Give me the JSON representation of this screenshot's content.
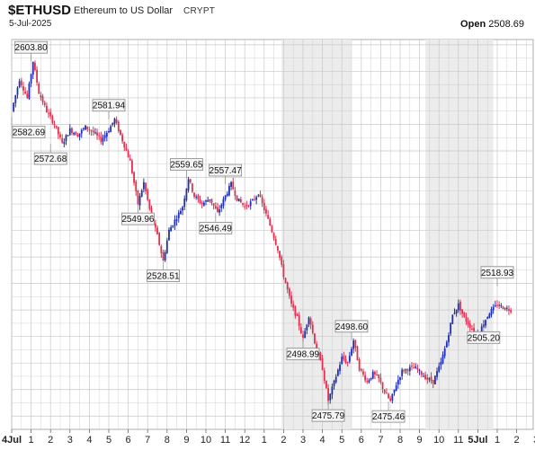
{
  "header": {
    "symbol": "$ETHUSD",
    "name": "Ethereum to US Dollar",
    "exchange": "CRYPT",
    "date": "5-Jul-2025",
    "open_label": "Open",
    "open_value": "2508.69"
  },
  "colors": {
    "up": "#1f2fb0",
    "down": "#e0304f",
    "grid": "#c8c8c8",
    "shade": "#ececec"
  },
  "chart_data": {
    "type": "candlestick",
    "ylim": [
      2465,
      2612
    ],
    "grid": true,
    "x_tick_labels": [
      {
        "label": "4Jul",
        "bold": true
      },
      {
        "label": "1"
      },
      {
        "label": "2"
      },
      {
        "label": "3"
      },
      {
        "label": "4"
      },
      {
        "label": "5"
      },
      {
        "label": "6"
      },
      {
        "label": "7"
      },
      {
        "label": "8"
      },
      {
        "label": "9"
      },
      {
        "label": "10"
      },
      {
        "label": "11"
      },
      {
        "label": "12"
      },
      {
        "label": "1"
      },
      {
        "label": "2"
      },
      {
        "label": "3"
      },
      {
        "label": "4"
      },
      {
        "label": "5"
      },
      {
        "label": "6"
      },
      {
        "label": "7"
      },
      {
        "label": "8"
      },
      {
        "label": "9"
      },
      {
        "label": "10"
      },
      {
        "label": "11"
      },
      {
        "label": "5Jul",
        "bold": true
      },
      {
        "label": "1"
      },
      {
        "label": "2"
      },
      {
        "label": "3"
      }
    ],
    "annotations": [
      {
        "label": "2603.80",
        "hour": 1,
        "value": 2603.8,
        "pos": "above"
      },
      {
        "label": "2582.69",
        "hour": 0,
        "value": 2582.69,
        "pos": "below"
      },
      {
        "label": "2572.68",
        "hour": 2,
        "value": 2572.68,
        "pos": "below"
      },
      {
        "label": "2581.94",
        "hour": 5,
        "value": 2581.94,
        "pos": "above"
      },
      {
        "label": "2549.96",
        "hour": 6.5,
        "value": 2549.96,
        "pos": "below"
      },
      {
        "label": "2559.65",
        "hour": 9,
        "value": 2559.65,
        "pos": "above"
      },
      {
        "label": "2557.47",
        "hour": 11,
        "value": 2557.47,
        "pos": "above"
      },
      {
        "label": "2546.49",
        "hour": 10.5,
        "value": 2546.49,
        "pos": "below"
      },
      {
        "label": "2528.51",
        "hour": 7.8,
        "value": 2528.51,
        "pos": "below"
      },
      {
        "label": "2498.99",
        "hour": 15,
        "value": 2498.99,
        "pos": "below"
      },
      {
        "label": "2498.60",
        "hour": 17.5,
        "value": 2498.6,
        "pos": "above"
      },
      {
        "label": "2475.79",
        "hour": 16.3,
        "value": 2475.79,
        "pos": "below"
      },
      {
        "label": "2475.46",
        "hour": 19.4,
        "value": 2475.46,
        "pos": "below"
      },
      {
        "label": "2518.93",
        "hour": 25,
        "value": 2518.93,
        "pos": "above"
      },
      {
        "label": "2505.20",
        "hour": 24.3,
        "value": 2505.2,
        "pos": "below"
      }
    ],
    "path": [
      [
        0,
        2585
      ],
      [
        0.4,
        2597
      ],
      [
        0.8,
        2590
      ],
      [
        1.1,
        2603.8
      ],
      [
        1.4,
        2592
      ],
      [
        1.8,
        2585
      ],
      [
        2.2,
        2580
      ],
      [
        2.6,
        2572.7
      ],
      [
        3.0,
        2578
      ],
      [
        3.4,
        2576
      ],
      [
        3.8,
        2579
      ],
      [
        4.2,
        2577
      ],
      [
        4.6,
        2574
      ],
      [
        5.0,
        2578
      ],
      [
        5.3,
        2581.9
      ],
      [
        5.7,
        2574
      ],
      [
        6.1,
        2566
      ],
      [
        6.5,
        2550
      ],
      [
        6.8,
        2558
      ],
      [
        7.1,
        2548
      ],
      [
        7.5,
        2538
      ],
      [
        7.8,
        2528.5
      ],
      [
        8.1,
        2540
      ],
      [
        8.5,
        2545
      ],
      [
        8.8,
        2549
      ],
      [
        9.1,
        2559.7
      ],
      [
        9.4,
        2553
      ],
      [
        9.8,
        2550
      ],
      [
        10.2,
        2552
      ],
      [
        10.6,
        2546.5
      ],
      [
        11.0,
        2553
      ],
      [
        11.3,
        2557.5
      ],
      [
        11.6,
        2552
      ],
      [
        12.0,
        2549
      ],
      [
        12.4,
        2551
      ],
      [
        12.7,
        2554
      ],
      [
        13.0,
        2548
      ],
      [
        13.3,
        2542
      ],
      [
        13.7,
        2533
      ],
      [
        14.0,
        2523
      ],
      [
        14.4,
        2512
      ],
      [
        14.7,
        2507
      ],
      [
        15.0,
        2499
      ],
      [
        15.3,
        2508
      ],
      [
        15.6,
        2498
      ],
      [
        16.0,
        2488
      ],
      [
        16.3,
        2475.8
      ],
      [
        16.7,
        2485
      ],
      [
        17.0,
        2492
      ],
      [
        17.3,
        2490
      ],
      [
        17.6,
        2498.6
      ],
      [
        17.9,
        2488
      ],
      [
        18.3,
        2483
      ],
      [
        18.6,
        2486
      ],
      [
        18.9,
        2484
      ],
      [
        19.2,
        2479
      ],
      [
        19.5,
        2475.5
      ],
      [
        19.8,
        2482
      ],
      [
        20.1,
        2487
      ],
      [
        20.5,
        2488
      ],
      [
        20.8,
        2488
      ],
      [
        21.1,
        2486
      ],
      [
        21.4,
        2484
      ],
      [
        21.7,
        2483
      ],
      [
        22.1,
        2490
      ],
      [
        22.4,
        2498
      ],
      [
        22.7,
        2508
      ],
      [
        23.0,
        2512
      ],
      [
        23.3,
        2507
      ],
      [
        23.6,
        2504
      ],
      [
        24.0,
        2500
      ],
      [
        24.3,
        2505.2
      ],
      [
        24.6,
        2509
      ],
      [
        25.0,
        2512
      ],
      [
        25.3,
        2511
      ],
      [
        25.7,
        2510
      ]
    ]
  }
}
